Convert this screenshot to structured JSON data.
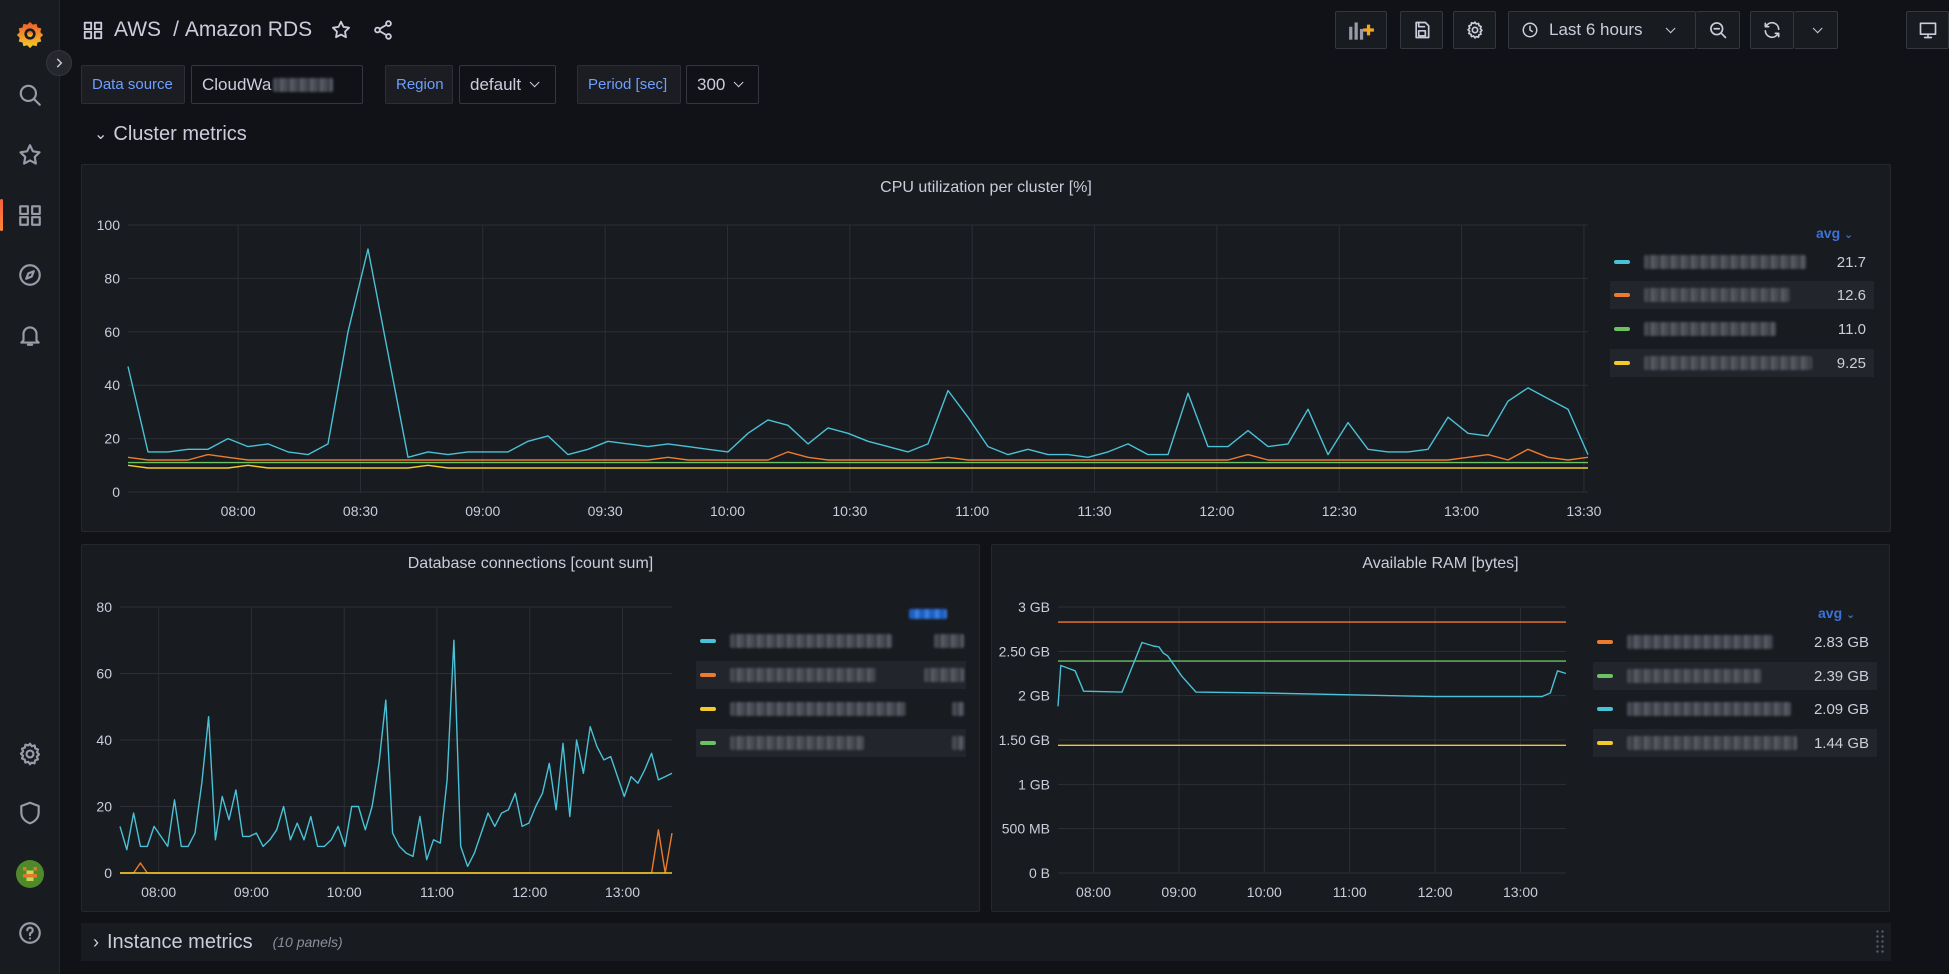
{
  "breadcrumb": {
    "folder": "AWS",
    "separator": "/",
    "title": "Amazon RDS"
  },
  "toolbar": {
    "time_range": "Last 6 hours"
  },
  "variables": [
    {
      "label": "Data source",
      "value": "CloudWa"
    },
    {
      "label": "Region",
      "value": "default"
    },
    {
      "label": "Period [sec]",
      "value": "300"
    }
  ],
  "rows": {
    "cluster": {
      "title": "Cluster metrics"
    },
    "instance": {
      "title": "Instance metrics",
      "meta": "(10 panels)"
    }
  },
  "colors": {
    "cyan": "#49c1d6",
    "orange": "#ee7b2c",
    "green": "#6ac260",
    "yellow": "#f2cb2b",
    "accent": "#3d71d9"
  },
  "panels": {
    "cpu": {
      "title": "CPU utilization per cluster [%]",
      "legend_header": "avg",
      "legend_values": [
        "21.7",
        "12.6",
        "11.0",
        "9.25"
      ]
    },
    "connections": {
      "title": "Database connections [count sum]"
    },
    "ram": {
      "title": "Available RAM [bytes]",
      "legend_header": "avg",
      "legend_values": [
        "2.83 GB",
        "2.39 GB",
        "2.09 GB",
        "1.44 GB"
      ]
    }
  },
  "chart_data": [
    {
      "type": "line",
      "title": "CPU utilization per cluster [%]",
      "x_ticks": [
        "08:00",
        "08:30",
        "09:00",
        "09:30",
        "10:00",
        "10:30",
        "11:00",
        "11:30",
        "12:00",
        "12:30",
        "13:00",
        "13:30"
      ],
      "y_ticks": [
        "0",
        "20",
        "40",
        "60",
        "80",
        "100"
      ],
      "ylim": [
        0,
        100
      ],
      "x_range": [
        "07:33",
        "13:31"
      ],
      "grid": true,
      "legend_placement": "right",
      "series": [
        {
          "color": "#49c1d6",
          "values": [
            47,
            15,
            15,
            16,
            16,
            20,
            17,
            18,
            15,
            14,
            18,
            60,
            91,
            52,
            13,
            15,
            14,
            15,
            15,
            15,
            19,
            21,
            14,
            16,
            19,
            18,
            17,
            18,
            17,
            16,
            15,
            22,
            27,
            25,
            18,
            24,
            22,
            19,
            17,
            15,
            18,
            38,
            28,
            17,
            14,
            16,
            14,
            14,
            13,
            15,
            18,
            14,
            14,
            37,
            17,
            17,
            23,
            17,
            18,
            31,
            14,
            26,
            16,
            15,
            15,
            16,
            28,
            22,
            21,
            34,
            39,
            35,
            31,
            14
          ]
        },
        {
          "color": "#ee7b2c",
          "values": [
            13,
            12,
            12,
            12,
            14,
            13,
            12,
            12,
            12,
            12,
            12,
            12,
            12,
            12,
            12,
            12,
            12,
            12,
            12,
            12,
            12,
            12,
            12,
            12,
            12,
            12,
            12,
            13,
            12,
            12,
            12,
            12,
            12,
            15,
            13,
            12,
            12,
            12,
            12,
            12,
            12,
            13,
            12,
            12,
            12,
            12,
            12,
            12,
            12,
            12,
            12,
            12,
            12,
            12,
            12,
            12,
            14,
            12,
            12,
            12,
            12,
            12,
            12,
            12,
            12,
            12,
            12,
            13,
            14,
            12,
            16,
            13,
            12,
            13
          ]
        },
        {
          "color": "#6ac260",
          "values": [
            11,
            11,
            11,
            11,
            11,
            11,
            11,
            11,
            11,
            11,
            11,
            11,
            11,
            11,
            11,
            11,
            11,
            11,
            11,
            11,
            11,
            11,
            11,
            11,
            11,
            11,
            11,
            11,
            11,
            11,
            11,
            11,
            11,
            11,
            11,
            11,
            11,
            11,
            11,
            11,
            11,
            11,
            11,
            11,
            11,
            11,
            11,
            11,
            11,
            11,
            11,
            11,
            11,
            11,
            11,
            11,
            11,
            11,
            11,
            11,
            11,
            11,
            11,
            11,
            11,
            11,
            11,
            11,
            11,
            11,
            11,
            11,
            11,
            11
          ]
        },
        {
          "color": "#f2cb2b",
          "values": [
            10,
            9,
            9,
            9,
            9,
            9,
            10,
            9,
            9,
            9,
            9,
            9,
            9,
            9,
            9,
            10,
            9,
            9,
            9,
            9,
            9,
            9,
            9,
            9,
            9,
            9,
            9,
            9,
            9,
            9,
            9,
            9,
            9,
            9,
            9,
            9,
            9,
            9,
            9,
            9,
            9,
            9,
            9,
            9,
            9,
            9,
            9,
            9,
            9,
            9,
            9,
            9,
            9,
            9,
            9,
            9,
            9,
            9,
            9,
            9,
            9,
            9,
            9,
            9,
            9,
            9,
            9,
            9,
            9,
            9,
            9,
            9,
            9,
            9
          ]
        }
      ]
    },
    {
      "type": "line",
      "title": "Database connections [count sum]",
      "x_ticks": [
        "08:00",
        "09:00",
        "10:00",
        "11:00",
        "12:00",
        "13:00"
      ],
      "y_ticks": [
        "0",
        "20",
        "40",
        "60",
        "80"
      ],
      "ylim": [
        0,
        80
      ],
      "x_range": [
        "07:35",
        "13:32"
      ],
      "grid": true,
      "legend_placement": "right",
      "series": [
        {
          "color": "#49c1d6",
          "values": [
            14,
            7,
            18,
            8,
            8,
            14,
            11,
            8,
            22,
            8,
            8,
            12,
            27,
            47,
            10,
            23,
            16,
            25,
            11,
            11,
            12,
            8,
            10,
            13,
            20,
            10,
            15,
            10,
            17,
            8,
            8,
            10,
            14,
            8,
            20,
            20,
            13,
            20,
            33,
            52,
            12,
            8,
            6,
            5,
            17,
            4,
            10,
            9,
            28,
            70,
            8,
            2,
            6,
            12,
            18,
            14,
            18,
            19,
            24,
            14,
            15,
            20,
            24,
            33,
            19,
            39,
            17,
            40,
            30,
            44,
            38,
            34,
            35,
            29,
            23,
            29,
            27,
            31,
            36,
            28,
            29,
            30
          ]
        },
        {
          "color": "#ee7b2c",
          "values": [
            0,
            0,
            0,
            3,
            0,
            0,
            0,
            0,
            0,
            0,
            0,
            0,
            0,
            0,
            0,
            0,
            0,
            0,
            0,
            0,
            0,
            0,
            0,
            0,
            0,
            0,
            0,
            0,
            0,
            0,
            0,
            0,
            0,
            0,
            0,
            0,
            0,
            0,
            0,
            0,
            0,
            0,
            0,
            0,
            0,
            0,
            0,
            0,
            0,
            0,
            0,
            0,
            0,
            0,
            0,
            0,
            0,
            0,
            0,
            0,
            0,
            0,
            0,
            0,
            0,
            0,
            0,
            0,
            0,
            0,
            0,
            0,
            0,
            0,
            0,
            0,
            0,
            0,
            0,
            13,
            0,
            12
          ]
        },
        {
          "color": "#f2cb2b",
          "values": [
            0,
            0,
            0,
            0,
            0,
            0,
            0,
            0,
            0,
            0,
            0,
            0,
            0,
            0,
            0,
            0,
            0,
            0,
            0,
            0,
            0,
            0,
            0,
            0,
            0,
            0,
            0,
            0,
            0,
            0,
            0,
            0,
            0,
            0,
            0,
            0,
            0,
            0,
            0,
            0,
            0,
            0,
            0,
            0,
            0,
            0,
            0,
            0,
            0,
            0,
            0,
            0,
            0,
            0,
            0,
            0,
            0,
            0,
            0,
            0,
            0,
            0,
            0,
            0,
            0,
            0,
            0,
            0,
            0,
            0,
            0,
            0,
            0,
            0,
            0,
            0,
            0,
            0,
            0,
            0,
            0,
            0
          ]
        }
      ]
    },
    {
      "type": "line",
      "title": "Available RAM [bytes]",
      "x_ticks": [
        "08:00",
        "09:00",
        "10:00",
        "11:00",
        "12:00",
        "13:00"
      ],
      "y_ticks": [
        "0 B",
        "500 MB",
        "1 GB",
        "1.50 GB",
        "2 GB",
        "2.50 GB",
        "3 GB"
      ],
      "ylim": [
        0,
        3
      ],
      "y_unit": "GB",
      "x_range": [
        "07:35",
        "13:32"
      ],
      "grid": true,
      "legend_placement": "right",
      "series": [
        {
          "color": "#ee7b2c",
          "x": [
            "07:35",
            "13:32"
          ],
          "values": [
            2.83,
            2.83
          ]
        },
        {
          "color": "#6ac260",
          "x": [
            "07:35",
            "13:32"
          ],
          "values": [
            2.39,
            2.39
          ]
        },
        {
          "color": "#49c1d6",
          "x": [
            "07:35",
            "07:37",
            "07:47",
            "07:53",
            "08:20",
            "08:34",
            "08:42",
            "08:46",
            "08:49",
            "08:52",
            "09:02",
            "09:12",
            "10:00",
            "11:00",
            "12:00",
            "13:00",
            "13:15",
            "13:21",
            "13:26",
            "13:32"
          ],
          "values": [
            1.88,
            2.34,
            2.28,
            2.05,
            2.04,
            2.6,
            2.56,
            2.55,
            2.48,
            2.45,
            2.22,
            2.04,
            2.03,
            2.01,
            1.99,
            1.99,
            1.99,
            2.03,
            2.28,
            2.25
          ]
        },
        {
          "color": "#f2cb2b",
          "x": [
            "07:35",
            "13:32"
          ],
          "values": [
            1.44,
            1.44
          ]
        }
      ]
    }
  ]
}
